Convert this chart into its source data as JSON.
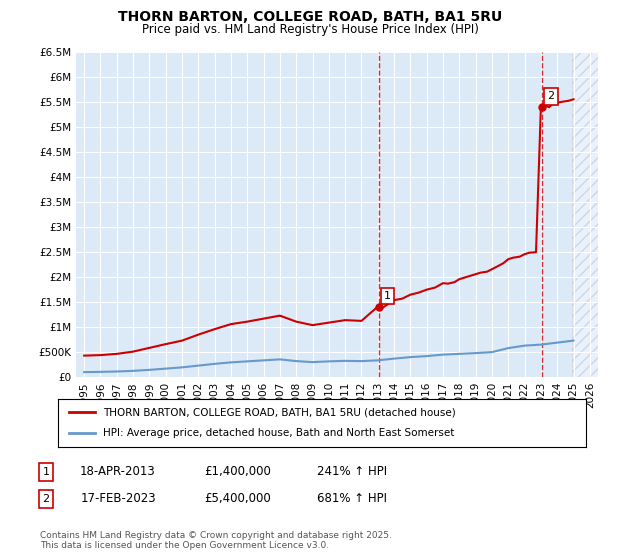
{
  "title": "THORN BARTON, COLLEGE ROAD, BATH, BA1 5RU",
  "subtitle": "Price paid vs. HM Land Registry's House Price Index (HPI)",
  "background_color": "#ffffff",
  "plot_bg_color": "#dce9f7",
  "grid_color": "#ffffff",
  "ylim": [
    0,
    6500000
  ],
  "yticks": [
    0,
    500000,
    1000000,
    1500000,
    2000000,
    2500000,
    3000000,
    3500000,
    4000000,
    4500000,
    5000000,
    5500000,
    6000000,
    6500000
  ],
  "ytick_labels": [
    "£0",
    "£500K",
    "£1M",
    "£1.5M",
    "£2M",
    "£2.5M",
    "£3M",
    "£3.5M",
    "£4M",
    "£4.5M",
    "£5M",
    "£5.5M",
    "£6M",
    "£6.5M"
  ],
  "xlim_start": 1994.5,
  "xlim_end": 2026.5,
  "xticks": [
    1995,
    1996,
    1997,
    1998,
    1999,
    2000,
    2001,
    2002,
    2003,
    2004,
    2005,
    2006,
    2007,
    2008,
    2009,
    2010,
    2011,
    2012,
    2013,
    2014,
    2015,
    2016,
    2017,
    2018,
    2019,
    2020,
    2021,
    2022,
    2023,
    2024,
    2025,
    2026
  ],
  "red_line_color": "#cc0000",
  "blue_line_color": "#6699cc",
  "marker_color": "#cc0000",
  "hpi_line": {
    "years": [
      1995,
      1996,
      1997,
      1998,
      1999,
      2000,
      2001,
      2002,
      2003,
      2004,
      2005,
      2006,
      2007,
      2008,
      2009,
      2010,
      2011,
      2012,
      2013,
      2014,
      2015,
      2016,
      2017,
      2018,
      2019,
      2020,
      2021,
      2022,
      2023,
      2024,
      2025
    ],
    "values": [
      90000,
      95000,
      102000,
      115000,
      135000,
      160000,
      185000,
      220000,
      255000,
      285000,
      305000,
      325000,
      345000,
      310000,
      290000,
      305000,
      315000,
      310000,
      325000,
      360000,
      390000,
      410000,
      440000,
      455000,
      470000,
      490000,
      570000,
      620000,
      640000,
      680000,
      720000
    ]
  },
  "red_line": {
    "years": [
      1995,
      1996,
      1997,
      1998,
      1999,
      2000,
      2001,
      2002,
      2003,
      2004,
      2005,
      2006,
      2007,
      2008,
      2009,
      2010,
      2011,
      2012,
      2013,
      2013.3,
      2014,
      2014.5,
      2015,
      2015.5,
      2016,
      2016.5,
      2017,
      2017.3,
      2017.7,
      2018,
      2018.5,
      2019,
      2019.3,
      2019.7,
      2020,
      2020.3,
      2020.7,
      2021,
      2021.3,
      2021.7,
      2022,
      2022.3,
      2022.7,
      2023,
      2023.1,
      2023.3,
      2023.5,
      2023.7,
      2024,
      2024.3,
      2024.7,
      2025
    ],
    "values": [
      420000,
      430000,
      455000,
      500000,
      575000,
      650000,
      720000,
      840000,
      950000,
      1050000,
      1100000,
      1160000,
      1220000,
      1100000,
      1030000,
      1080000,
      1130000,
      1115000,
      1400000,
      1380000,
      1530000,
      1560000,
      1640000,
      1680000,
      1740000,
      1780000,
      1870000,
      1860000,
      1890000,
      1950000,
      2000000,
      2050000,
      2080000,
      2100000,
      2150000,
      2200000,
      2270000,
      2350000,
      2380000,
      2400000,
      2450000,
      2480000,
      2490000,
      5400000,
      5380000,
      5420000,
      5390000,
      5450000,
      5480000,
      5500000,
      5520000,
      5550000
    ]
  },
  "sale1": {
    "year": 2013.08,
    "value": 1400000,
    "label": "1"
  },
  "sale2": {
    "year": 2023.08,
    "value": 5400000,
    "label": "2"
  },
  "dashed_line1_x": 2013.08,
  "dashed_line2_x": 2023.08,
  "legend_line1": "THORN BARTON, COLLEGE ROAD, BATH, BA1 5RU (detached house)",
  "legend_line2": "HPI: Average price, detached house, Bath and North East Somerset",
  "annotation1_num": "1",
  "annotation1_date": "18-APR-2013",
  "annotation1_price": "£1,400,000",
  "annotation1_hpi": "241% ↑ HPI",
  "annotation2_num": "2",
  "annotation2_date": "17-FEB-2023",
  "annotation2_price": "£5,400,000",
  "annotation2_hpi": "681% ↑ HPI",
  "footer": "Contains HM Land Registry data © Crown copyright and database right 2025.\nThis data is licensed under the Open Government Licence v3.0."
}
